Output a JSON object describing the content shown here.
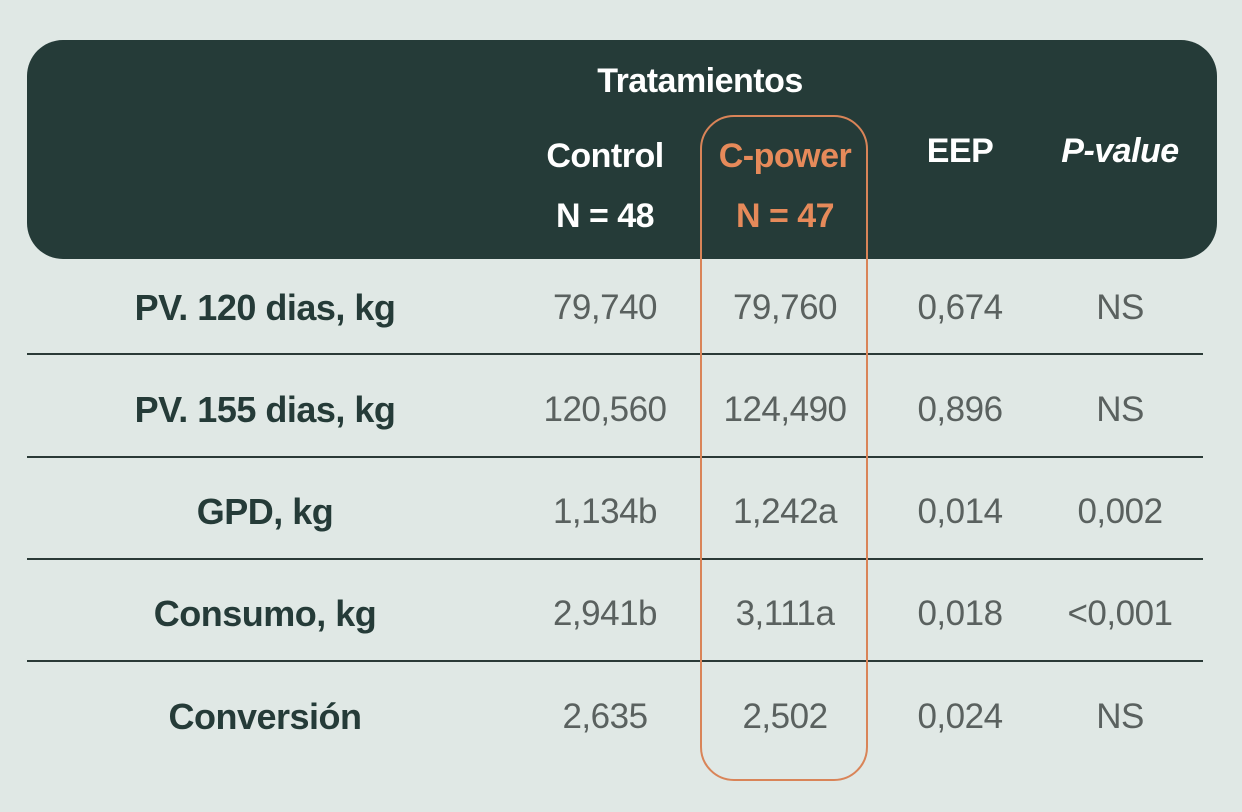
{
  "table": {
    "group_header": "Tratamientos",
    "columns": [
      {
        "line1": "Control",
        "line2": "N = 48"
      },
      {
        "line1": "C-power",
        "line2": "N = 47"
      },
      {
        "line1": "EEP"
      },
      {
        "line1": "P-value"
      }
    ],
    "rows": [
      {
        "label": "PV. 120 dias, kg",
        "control": "79,740",
        "cpower": "79,760",
        "eep": "0,674",
        "pvalue": "NS"
      },
      {
        "label": "PV. 155 dias, kg",
        "control": "120,560",
        "cpower": "124,490",
        "eep": "0,896",
        "pvalue": "NS"
      },
      {
        "label": "GPD, kg",
        "control": "1,134b",
        "cpower": "1,242a",
        "eep": "0,014",
        "pvalue": "0,002"
      },
      {
        "label": "Consumo, kg",
        "control": "2,941b",
        "cpower": "3,111a",
        "eep": "0,018",
        "pvalue": "<0,001"
      },
      {
        "label": "Conversión",
        "control": "2,635",
        "cpower": "2,502",
        "eep": "0,024",
        "pvalue": "NS"
      }
    ]
  },
  "colors": {
    "background": "#e0e8e5",
    "header": "#253b38",
    "accent": "#e68a5a"
  }
}
